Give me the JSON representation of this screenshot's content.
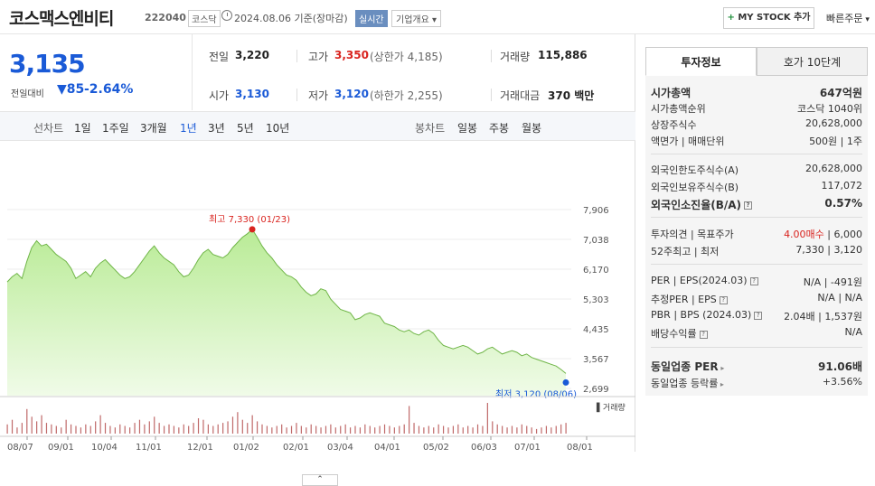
{
  "header": {
    "title": "코스맥스엔비티",
    "code": "222040",
    "market": "코스닥",
    "date": "2024.08.06 기준(장마감)",
    "realtime": "실시간",
    "corp_overview": "기업개요",
    "mystock": "MY STOCK 추가",
    "quick_order": "빠른주문"
  },
  "price": {
    "current": "3,135",
    "prev_label": "전일대비",
    "change": "85",
    "change_rate": "-2.64%"
  },
  "stats": {
    "prev_label": "전일",
    "prev_val": "3,220",
    "high_label": "고가",
    "high_val": "3,350",
    "upper_limit": "(상한가 4,185)",
    "volume_label": "거래량",
    "volume_val": "115,886",
    "open_label": "시가",
    "open_val": "3,130",
    "low_label": "저가",
    "low_val": "3,120",
    "lower_limit": "(하한가 2,255)",
    "amount_label": "거래대금",
    "amount_val": "370 백만"
  },
  "period": {
    "line_label": "선차트",
    "items": [
      "1일",
      "1주일",
      "3개월",
      "1년",
      "3년",
      "5년",
      "10년"
    ],
    "active": "1년",
    "candle_label": "봉차트",
    "candle_items": [
      "일봉",
      "주봉",
      "월봉"
    ]
  },
  "chart_data": {
    "type": "area",
    "yticks": [
      "7,906",
      "7,038",
      "6,170",
      "5,303",
      "4,435",
      "3,567",
      "2,699"
    ],
    "ylim": [
      2699,
      7906
    ],
    "xticks": [
      "08/07",
      "09/01",
      "10/04",
      "11/01",
      "12/01",
      "01/02",
      "02/01",
      "03/04",
      "04/01",
      "05/02",
      "06/03",
      "07/01",
      "08/01"
    ],
    "high_label": "최고 7,330 (01/23)",
    "low_label": "최저 3,120 (08/06)",
    "volume_label": "거래량",
    "series": [
      {
        "values": [
          5800,
          5950,
          6050,
          5900,
          6400,
          6800,
          7000,
          6850,
          6900,
          6750,
          6600,
          6500,
          6400,
          6200,
          5900,
          6000,
          6100,
          5950,
          6200,
          6350,
          6450,
          6300,
          6150,
          6000,
          5900,
          5950,
          6100,
          6300,
          6500,
          6700,
          6850,
          6650,
          6500,
          6400,
          6300,
          6100,
          5950,
          6000,
          6200,
          6450,
          6650,
          6750,
          6600,
          6550,
          6500,
          6600,
          6800,
          6950,
          7100,
          7200,
          7330,
          7100,
          6850,
          6650,
          6500,
          6300,
          6150,
          6000,
          5950,
          5850,
          5650,
          5500,
          5400,
          5450,
          5600,
          5550,
          5300,
          5150,
          5000,
          4950,
          4900,
          4700,
          4750,
          4850,
          4900,
          4850,
          4800,
          4600,
          4550,
          4500,
          4400,
          4350,
          4400,
          4300,
          4250,
          4350,
          4400,
          4300,
          4100,
          3950,
          3900,
          3850,
          3900,
          3950,
          3900,
          3800,
          3700,
          3750,
          3850,
          3900,
          3800,
          3700,
          3750,
          3800,
          3750,
          3650,
          3700,
          3600,
          3550,
          3500,
          3450,
          3400,
          3350,
          3250,
          3135
        ]
      }
    ],
    "volume": [
      30,
      45,
      20,
      35,
      80,
      55,
      40,
      60,
      35,
      30,
      25,
      20,
      45,
      30,
      25,
      20,
      30,
      25,
      40,
      60,
      35,
      25,
      20,
      30,
      25,
      20,
      35,
      45,
      30,
      40,
      55,
      35,
      25,
      30,
      25,
      20,
      30,
      25,
      35,
      50,
      45,
      30,
      25,
      30,
      35,
      40,
      55,
      70,
      45,
      35,
      60,
      40,
      30,
      25,
      20,
      25,
      30,
      20,
      25,
      35,
      25,
      20,
      30,
      25,
      20,
      25,
      30,
      20,
      25,
      30,
      20,
      25,
      20,
      30,
      25,
      20,
      25,
      30,
      25,
      20,
      25,
      30,
      90,
      35,
      25,
      20,
      25,
      20,
      30,
      25,
      20,
      25,
      30,
      20,
      25,
      20,
      30,
      25,
      100,
      40,
      30,
      25,
      20,
      25,
      20,
      30,
      25,
      20,
      15,
      20,
      25,
      20,
      25,
      30,
      35
    ]
  },
  "sidebar": {
    "tab_invest": "투자정보",
    "tab_hoga": "호가 10단계",
    "rows": {
      "mcap_k": "시가총액",
      "mcap_v": "647억원",
      "rank_k": "시가총액순위",
      "rank_v": "코스닥 1040위",
      "shares_k": "상장주식수",
      "shares_v": "20,628,000",
      "par_k": "액면가 | 매매단위",
      "par_v": "500원 | 1주",
      "fl_k": "외국인한도주식수(A)",
      "fl_v": "20,628,000",
      "fh_k": "외국인보유주식수(B)",
      "fh_v": "117,072",
      "fr_k": "외국인소진율(B/A)",
      "fr_v": "0.57%",
      "op_k": "투자의견 | 목표주가",
      "op_v1": "4.00매수",
      "op_v2": " | 6,000",
      "wk_k": "52주최고 | 최저",
      "wk_v": "7,330 | 3,120",
      "per_k": "PER | EPS(2024.03)",
      "per_v": "N/A | -491원",
      "eper_k": "추정PER | EPS",
      "eper_v": "N/A | N/A",
      "pbr_k": "PBR | BPS (2024.03)",
      "pbr_v": "2.04배 | 1,537원",
      "div_k": "배당수익률",
      "div_v": "N/A",
      "iper_k": "동일업종 PER",
      "iper_v": "91.06배",
      "irate_k": "동일업종 등락률",
      "irate_v": "+3.56%"
    }
  },
  "colors": {
    "up": "#d9231e",
    "down": "#1a5ad7",
    "area": "#c9f0b0",
    "line": "#6fb547"
  }
}
